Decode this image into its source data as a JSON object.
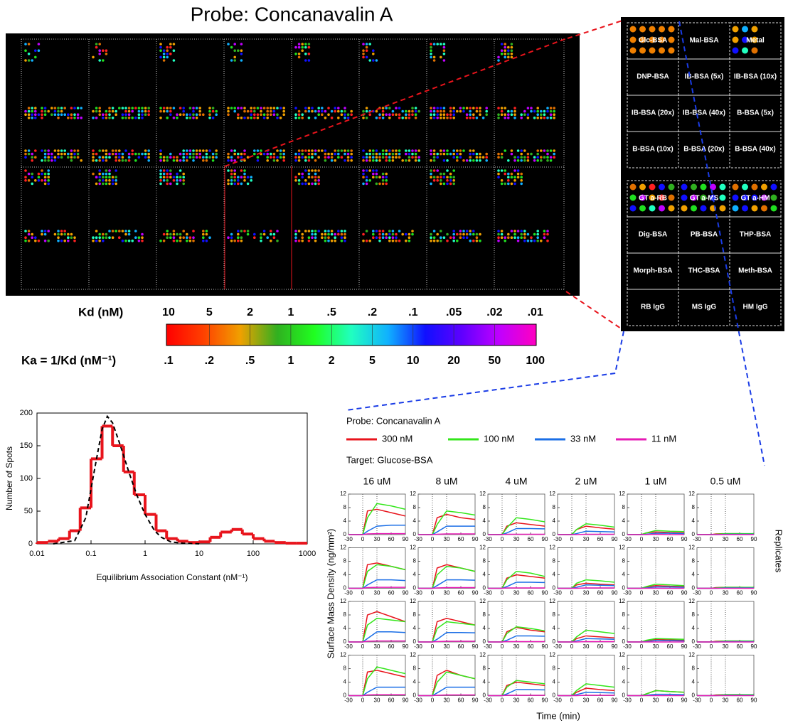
{
  "figure": {
    "title": "Probe: Concanavalin A"
  },
  "inset": {
    "labels": [
      "Glc-BSA",
      "Mal-BSA",
      "Metal",
      "DNP-BSA",
      "IB-BSA (5x)",
      "IB-BSA (10x)",
      "IB-BSA (20x)",
      "IB-BSA (40x)",
      "B-BSA (5x)",
      "B-BSA (10x)",
      "B-BSA (20x)",
      "B-BSA (40x)",
      "GT a-RB",
      "GT a-MS",
      "GT a-HM",
      "Dig-BSA",
      "PB-BSA",
      "THP-BSA",
      "Morph-BSA",
      "THC-BSA",
      "Meth-BSA",
      "RB IgG",
      "MS IgG",
      "HM IgG"
    ]
  },
  "colorbar": {
    "kd_title": "Kd (nM)",
    "kd_labels": [
      "10",
      "5",
      "2",
      "1",
      ".5",
      ".2",
      ".1",
      ".05",
      ".02",
      ".01"
    ],
    "ka_title": "Ka = 1/Kd (nM⁻¹)",
    "ka_labels": [
      ".1",
      ".2",
      ".5",
      "1",
      "2",
      "5",
      "10",
      "20",
      "50",
      "100"
    ]
  },
  "chart_data": [
    {
      "type": "histogram",
      "xlabel": "Equilibrium Association Constant (nM⁻¹)",
      "ylabel": "Number of Spots",
      "log_x": true,
      "color": "#e8141c",
      "bins": [
        0.01,
        0.016,
        0.025,
        0.04,
        0.063,
        0.1,
        0.16,
        0.25,
        0.4,
        0.63,
        1,
        1.6,
        2.5,
        4,
        6.3,
        10,
        16,
        25,
        40,
        63,
        100,
        160,
        250,
        400,
        630,
        1000
      ],
      "values": [
        2,
        4,
        8,
        20,
        55,
        130,
        180,
        150,
        110,
        75,
        45,
        20,
        8,
        4,
        2,
        3,
        10,
        18,
        22,
        15,
        8,
        4,
        2,
        1,
        1
      ],
      "fit": {
        "color": "#000000",
        "x": [
          0.02,
          0.05,
          0.08,
          0.12,
          0.16,
          0.2,
          0.25,
          0.35,
          0.5,
          0.7,
          1,
          1.5,
          2,
          3,
          5,
          10
        ],
        "values": [
          0,
          5,
          40,
          120,
          175,
          195,
          185,
          150,
          110,
          75,
          45,
          20,
          10,
          3,
          1,
          0
        ]
      },
      "xlim": [
        0.01,
        1000
      ],
      "xticks": [
        0.01,
        0.1,
        1,
        10,
        100,
        1000
      ],
      "ylim": [
        0,
        200
      ],
      "yticks": [
        0,
        50,
        100,
        150,
        200
      ]
    },
    {
      "type": "line",
      "probe": "Probe: Concanavalin A",
      "target": "Target: Glucose-BSA",
      "xlabel": "Time (min)",
      "ylabel": "Surface Mass Density (ng/mm²)",
      "row_label": "Replicates",
      "columns": [
        "16 uM",
        "8 uM",
        "4 uM",
        "2 uM",
        "1 uM",
        "0.5 uM"
      ],
      "series": [
        {
          "name": "300 nM",
          "color": "#e8141c"
        },
        {
          "name": "100 nM",
          "color": "#33e61a"
        },
        {
          "name": "33 nM",
          "color": "#1a6ee6"
        },
        {
          "name": "11 nM",
          "color": "#e61ab4"
        }
      ],
      "x": [
        -30,
        0,
        10,
        30,
        60,
        90
      ],
      "vlines": [
        0,
        30
      ],
      "xlim": [
        -30,
        90
      ],
      "xticks": [
        -30,
        0,
        30,
        60,
        90
      ],
      "ylim": [
        0,
        12
      ],
      "yticks": [
        0,
        4,
        8,
        12
      ],
      "panels": [
        [
          [
            [
              0,
              0,
              7,
              7.5,
              6.5,
              5.5
            ],
            [
              0,
              0,
              5,
              9.2,
              8.5,
              7.5
            ],
            [
              0,
              0,
              1,
              2.5,
              2.8,
              2.8
            ],
            [
              0,
              0,
              0.2,
              0.3,
              0.3,
              0.3
            ]
          ],
          [
            [
              0,
              0,
              5,
              6,
              5,
              4.5
            ],
            [
              0,
              0,
              3,
              7,
              6.5,
              5.8
            ],
            [
              0,
              0,
              0.8,
              2.5,
              2.5,
              2.5
            ],
            [
              0,
              0,
              0.1,
              0.2,
              0.2,
              0.2
            ]
          ],
          [
            [
              0,
              0,
              2.5,
              3.5,
              3,
              2.5
            ],
            [
              0,
              0,
              2,
              5,
              4.5,
              3.8
            ],
            [
              0,
              0,
              0.5,
              1.8,
              1.8,
              1.7
            ],
            [
              0,
              0,
              0.1,
              0.1,
              0.1,
              0.1
            ]
          ],
          [
            [
              0,
              0,
              1.5,
              2.5,
              2,
              1.6
            ],
            [
              0,
              0,
              1.5,
              3.2,
              2.8,
              2.2
            ],
            [
              0,
              0,
              0.3,
              1,
              0.9,
              0.8
            ],
            [
              0,
              0,
              0,
              0.1,
              0.1,
              0.1
            ]
          ],
          [
            [
              0,
              0,
              0.5,
              0.8,
              0.6,
              0.5
            ],
            [
              0,
              0,
              0.5,
              1.2,
              1,
              0.9
            ],
            [
              0,
              0,
              0.1,
              0.4,
              0.4,
              0.3
            ],
            [
              0,
              0,
              0,
              0.1,
              0,
              0
            ]
          ],
          [
            [
              0,
              0,
              0.2,
              0.3,
              0.3,
              0.2
            ],
            [
              0,
              0,
              0.1,
              0.3,
              0.3,
              0.3
            ],
            [
              0,
              0,
              0,
              0.1,
              0.1,
              0.1
            ],
            [
              0,
              0,
              0,
              0,
              0,
              0
            ]
          ]
        ],
        [
          [
            [
              0,
              0,
              7,
              7.5,
              6.5,
              5.5
            ],
            [
              0,
              0,
              5,
              7,
              6.5,
              5.5
            ],
            [
              0,
              0,
              1,
              2.5,
              2.5,
              2.3
            ],
            [
              0,
              0,
              0.2,
              0.3,
              0.3,
              0.3
            ]
          ],
          [
            [
              0,
              0,
              6,
              7,
              6,
              5
            ],
            [
              0,
              0,
              4,
              6.5,
              6,
              5
            ],
            [
              0,
              0,
              0.8,
              2.5,
              2.5,
              2.4
            ],
            [
              0,
              0,
              0.1,
              0.2,
              0.2,
              0.2
            ]
          ],
          [
            [
              0,
              0,
              3,
              4,
              3.5,
              3
            ],
            [
              0,
              0,
              2.5,
              5,
              4.5,
              3.5
            ],
            [
              0,
              0,
              0.5,
              1.8,
              1.8,
              1.7
            ],
            [
              0,
              0,
              0.1,
              0.1,
              0.1,
              0.1
            ]
          ],
          [
            [
              0,
              0,
              1,
              1.5,
              1.2,
              1
            ],
            [
              0,
              0,
              1.5,
              2.5,
              2.2,
              1.8
            ],
            [
              0,
              0,
              0.3,
              1,
              0.9,
              0.8
            ],
            [
              0,
              0,
              0,
              0.1,
              0.1,
              0.1
            ]
          ],
          [
            [
              0,
              0,
              0.4,
              0.8,
              0.6,
              0.5
            ],
            [
              0,
              0,
              0.5,
              1.2,
              1,
              0.8
            ],
            [
              0,
              0,
              0.1,
              0.4,
              0.4,
              0.3
            ],
            [
              0,
              0,
              0,
              0,
              0,
              0
            ]
          ],
          [
            [
              0,
              0,
              0.2,
              0.3,
              0.3,
              0.2
            ],
            [
              0,
              0,
              0.1,
              0.3,
              0.3,
              0.3
            ],
            [
              0,
              0,
              0,
              0.1,
              0.1,
              0.1
            ],
            [
              0,
              0,
              0,
              0,
              0,
              0
            ]
          ]
        ],
        [
          [
            [
              0,
              0,
              8,
              9,
              7.5,
              6
            ],
            [
              0,
              0,
              5,
              7,
              6.5,
              6
            ],
            [
              0,
              0,
              1,
              3,
              3,
              2.8
            ],
            [
              0,
              0,
              0.2,
              0.3,
              0.3,
              0.3
            ]
          ],
          [
            [
              0,
              0,
              6,
              7,
              6,
              5
            ],
            [
              0,
              0,
              4,
              6,
              5.5,
              5
            ],
            [
              0,
              0,
              0.8,
              2.8,
              2.8,
              2.7
            ],
            [
              0,
              0,
              0.1,
              0.2,
              0.2,
              0.2
            ]
          ],
          [
            [
              0,
              0,
              3,
              4.3,
              3.5,
              3
            ],
            [
              0,
              0,
              2.5,
              4.5,
              4,
              3.3
            ],
            [
              0,
              0,
              0.5,
              1.8,
              1.8,
              1.7
            ],
            [
              0,
              0,
              0.1,
              0.1,
              0.1,
              0.1
            ]
          ],
          [
            [
              0,
              0,
              1,
              1.8,
              1.5,
              1.2
            ],
            [
              0,
              0,
              1.5,
              3.5,
              3,
              2.5
            ],
            [
              0,
              0,
              0.3,
              1,
              0.9,
              0.8
            ],
            [
              0,
              0,
              0,
              0.1,
              0.1,
              0.1
            ]
          ],
          [
            [
              0,
              0,
              0.4,
              0.8,
              0.6,
              0.5
            ],
            [
              0,
              0,
              0.5,
              1,
              0.9,
              0.8
            ],
            [
              0,
              0,
              0.1,
              0.4,
              0.4,
              0.3
            ],
            [
              0,
              0,
              0,
              0,
              0,
              0
            ]
          ],
          [
            [
              0,
              0,
              0.2,
              0.3,
              0.3,
              0.2
            ],
            [
              0,
              0,
              0.1,
              0.3,
              0.3,
              0.3
            ],
            [
              0,
              0,
              0,
              0.1,
              0.1,
              0.1
            ],
            [
              0,
              0,
              0,
              0,
              0,
              0
            ]
          ]
        ],
        [
          [
            [
              0,
              0,
              7,
              7.5,
              6.5,
              5.5
            ],
            [
              0,
              0,
              5,
              8.5,
              7.5,
              6.5
            ],
            [
              0,
              0,
              1,
              2.5,
              2.5,
              2.5
            ],
            [
              0,
              0,
              0.2,
              0.3,
              0.3,
              0.3
            ]
          ],
          [
            [
              0,
              0,
              6,
              7.5,
              6,
              5
            ],
            [
              0,
              0,
              4,
              7,
              6,
              5
            ],
            [
              0,
              0,
              0.8,
              2.5,
              2.5,
              2.5
            ],
            [
              0,
              0,
              0.1,
              0.2,
              0.2,
              0.2
            ]
          ],
          [
            [
              0,
              0,
              3,
              4,
              3.5,
              3
            ],
            [
              0,
              0,
              2.5,
              4.5,
              4,
              3.5
            ],
            [
              0,
              0,
              0.5,
              1.8,
              1.8,
              1.7
            ],
            [
              0,
              0,
              0.1,
              0.1,
              0.1,
              0.1
            ]
          ],
          [
            [
              0,
              0,
              1,
              2.2,
              1.8,
              1.5
            ],
            [
              0,
              0,
              1.5,
              3.5,
              3,
              2.5
            ],
            [
              0,
              0,
              0.3,
              1,
              0.9,
              0.8
            ],
            [
              0,
              0,
              0,
              0.1,
              0.1,
              0.1
            ]
          ],
          [
            [
              0,
              0,
              0.5,
              1.5,
              1.2,
              1
            ],
            [
              0,
              0,
              0.5,
              1.5,
              1.2,
              1
            ],
            [
              0,
              0,
              0.1,
              0.4,
              0.4,
              0.3
            ],
            [
              0,
              0,
              0,
              0,
              0,
              0
            ]
          ],
          [
            [
              0,
              0,
              0.2,
              0.3,
              0.3,
              0.2
            ],
            [
              0,
              0,
              0.1,
              0.3,
              0.3,
              0.3
            ],
            [
              0,
              0,
              0,
              0.1,
              0.1,
              0.1
            ],
            [
              0,
              0,
              0,
              0,
              0,
              0
            ]
          ]
        ]
      ]
    }
  ]
}
